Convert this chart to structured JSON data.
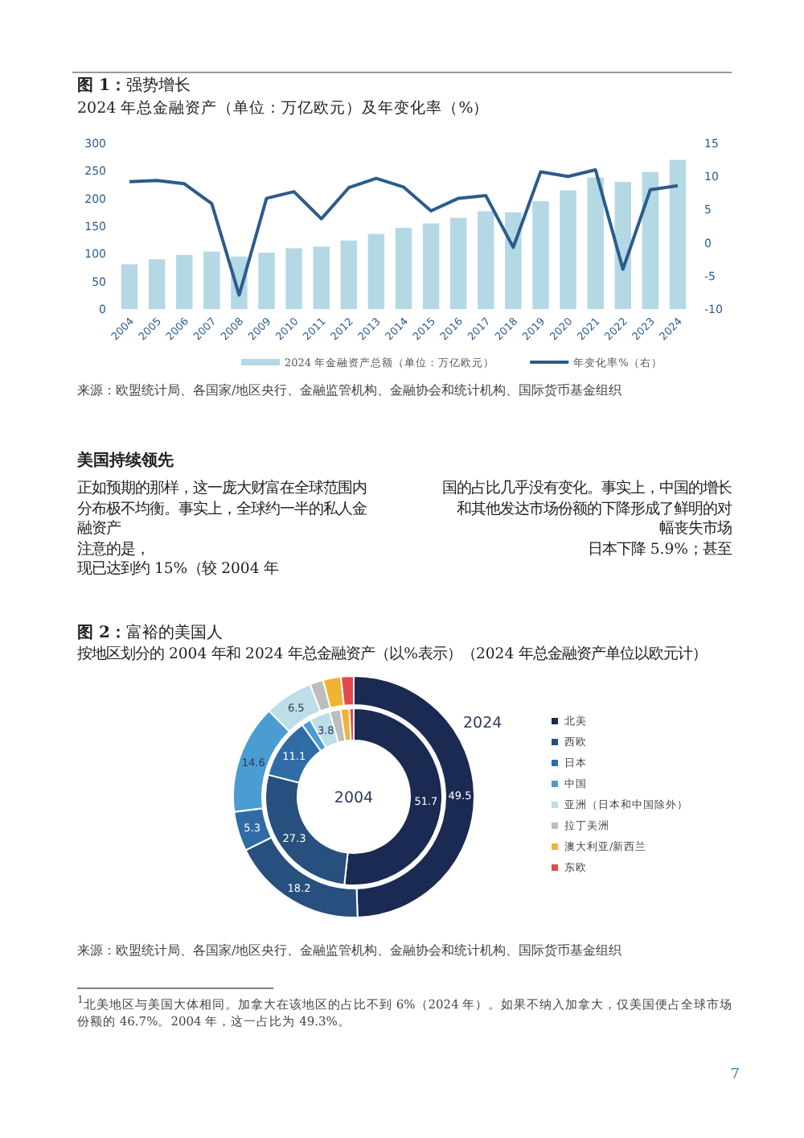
{
  "chart_data": [
    {
      "type": "bar",
      "title": "**图 1：**强势增长",
      "subtitle": "2024 年总金融资产（单位：万亿欧元）及年变化率（%）",
      "categories": [
        "2004",
        "2005",
        "2006",
        "2007",
        "2008",
        "2009",
        "2010",
        "2011",
        "2012",
        "2013",
        "2014",
        "2015",
        "2016",
        "2017",
        "2018",
        "2019",
        "2020",
        "2021",
        "2022",
        "2023",
        "2024"
      ],
      "series": [
        {
          "name": "2024 年金融资产总额（单位：万亿欧元）",
          "color": "#b5d8e5",
          "values": [
            81,
            90,
            98,
            104,
            95,
            102,
            110,
            113,
            124,
            136,
            147,
            155,
            165,
            177,
            175,
            195,
            215,
            238,
            230,
            248,
            270
          ]
        },
        {
          "name": "年变化率%（右）",
          "type": "line",
          "axis": "y2",
          "color": "#2b5c8c",
          "values": [
            9.2,
            9.4,
            8.9,
            5.9,
            -7.9,
            6.7,
            7.7,
            3.6,
            8.3,
            9.7,
            8.4,
            4.8,
            6.7,
            7.1,
            -0.7,
            10.7,
            10.0,
            11.0,
            -4.0,
            8.0,
            8.6
          ]
        }
      ],
      "ylim": [
        0,
        300
      ],
      "yticks": [
        0,
        50,
        100,
        150,
        200,
        250,
        300
      ],
      "y2lim": [
        -10,
        15
      ],
      "y2ticks": [
        -10,
        -5,
        0,
        5,
        10,
        15
      ],
      "legend": "bottom",
      "annotations": [
        "来源：欧盟统计局、各国家/地区央行、金融监管机构、金融协会和统计机构、国际货币基金组织"
      ]
    },
    {
      "type": "other",
      "title": "美国持续领先",
      "annotations": [
        "正如预期的那样，这一庞大财富在全球范围内",
        "国的占比几乎没有变化。事实上，中国的增长",
        "分布极不均衡。事实上，全球约一半的私人金",
        "和其他发达市场份额的下降形成了鲜明的对",
        "融资产",
        "幅丧失市场",
        "注意的是，",
        "日本下降 5.9%；甚至",
        "现已达到约 15%（较 2004 年"
      ]
    },
    {
      "type": "donut",
      "title": "**图 2：**富裕的美国人",
      "subtitle": "按地区划分的 2004 年和 2024 年总金融资产（以%表示）（2024 年总金融资产单位以欧元计）",
      "categories": [
        "北美",
        "西欧",
        "日本",
        "中国",
        "亚洲（日本和中国除外）",
        "拉丁美洲",
        "澳大利亚/新西兰",
        "东欧"
      ],
      "colors": [
        "#1b2a52",
        "#27507e",
        "#2f6ca6",
        "#4b9cd3",
        "#bddde9",
        "#bdbdbd",
        "#f0b435",
        "#e5484d"
      ],
      "series": [
        {
          "name": "2004",
          "values": [
            51.7,
            27.3,
            11.1,
            1.7,
            3.8,
            2.0,
            1.6,
            0.8
          ],
          "value_labels": [
            "51.7",
            "27.3",
            "11.1",
            null,
            "3.8",
            null,
            null,
            null
          ]
        },
        {
          "name": "2024",
          "values": [
            49.5,
            18.2,
            5.3,
            14.6,
            6.5,
            1.8,
            2.4,
            1.7
          ],
          "value_labels": [
            "49.5",
            "18.2",
            "5.3",
            "14.6",
            "6.5",
            null,
            null,
            null
          ]
        }
      ],
      "legend": "right",
      "annotations": [
        "来源：欧盟统计局、各国家/地区央行、金融监管机构、金融协会和统计机构、国际货币基金组织",
        "$^{1}$北美地区与美国大体相同。加拿大在该地区的占比不到 6%（2024 年）。如果不纳入加拿大，仅美国便占全球市场份额的 46.7%。2004 年，这一占比为 49.3%。",
        "7"
      ]
    }
  ]
}
